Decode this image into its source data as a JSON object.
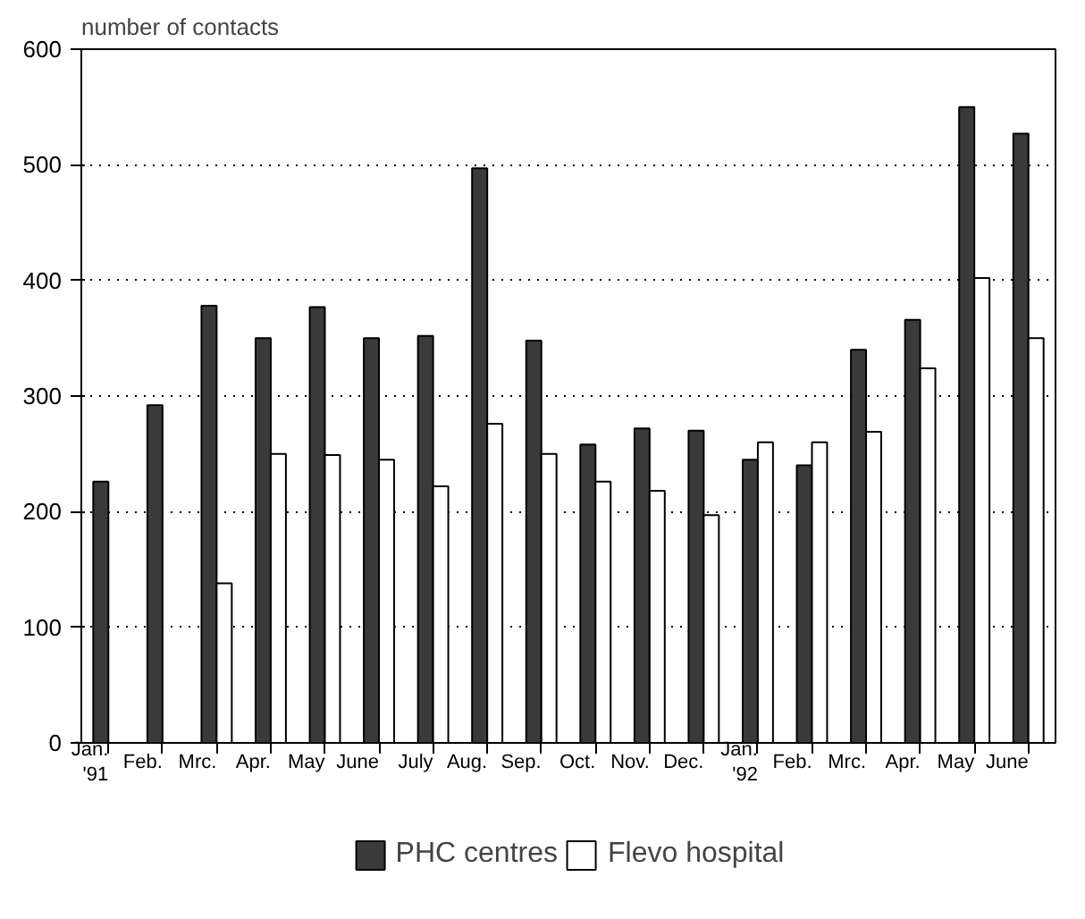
{
  "chart_data": {
    "type": "bar",
    "ylabel": "number of contacts",
    "categories": [
      "Jan.\n'91",
      "Feb.",
      "Mrc.",
      "Apr.",
      "May",
      "June",
      "July",
      "Aug.",
      "Sep.",
      "Oct.",
      "Nov.",
      "Dec.",
      "Jan.\n'92",
      "Feb.",
      "Mrc.",
      "Apr.",
      "May",
      "June"
    ],
    "series": [
      {
        "name": "PHC centres",
        "color": "#3a3a3a",
        "values": [
          226,
          292,
          378,
          350,
          377,
          350,
          352,
          497,
          348,
          258,
          272,
          270,
          245,
          240,
          340,
          366,
          550,
          527
        ]
      },
      {
        "name": "Flevo hospital",
        "color": "#ffffff",
        "values": [
          null,
          null,
          138,
          250,
          249,
          245,
          222,
          276,
          250,
          226,
          218,
          197,
          260,
          260,
          269,
          324,
          402,
          350
        ]
      }
    ],
    "ylim": [
      0,
      600
    ],
    "yticks": [
      0,
      100,
      200,
      300,
      400,
      500,
      600
    ],
    "grid": "y",
    "legend": "bottom"
  }
}
